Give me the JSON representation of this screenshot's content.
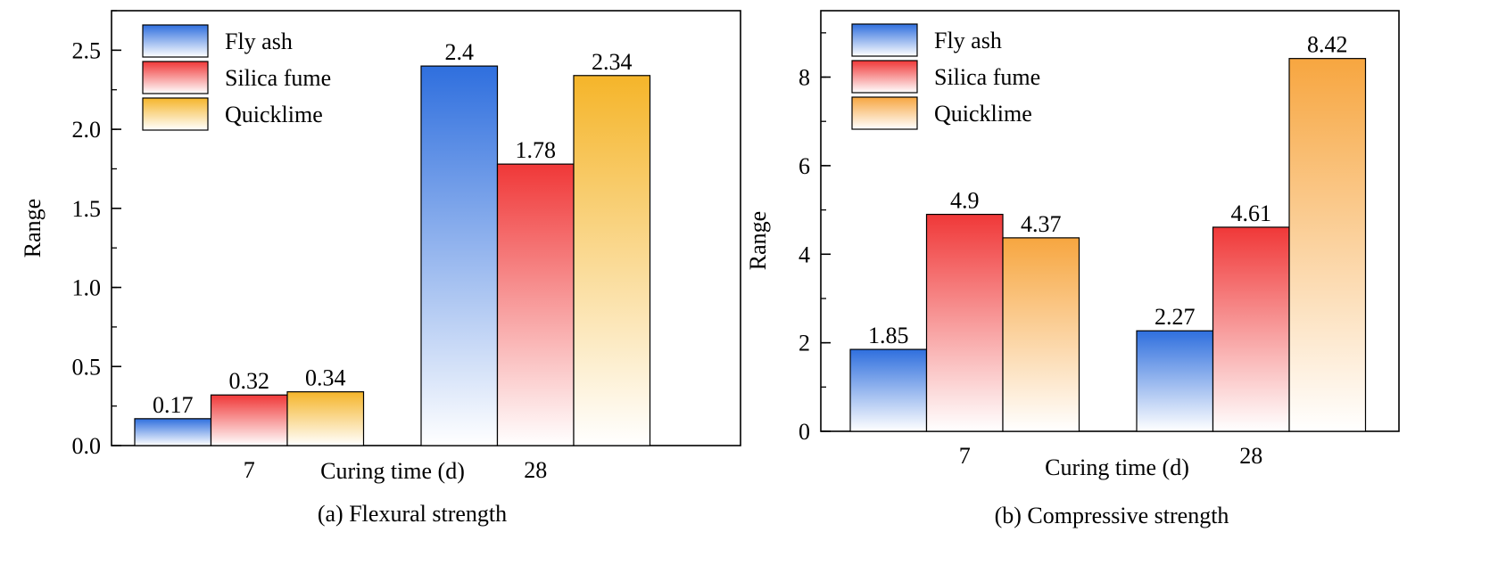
{
  "colors": {
    "fly_ash": "#2f6fde",
    "silica_fume": "#f03838",
    "quicklime": "#f5b52a",
    "quicklime_b": "#f7a640"
  },
  "chart_data": [
    {
      "type": "bar",
      "title": "Flexural strength",
      "caption": "(a)  Flexural strength",
      "xlabel": "Curing time (d)",
      "ylabel": "Range",
      "categories": [
        "7",
        "28"
      ],
      "ylim": [
        0,
        2.75
      ],
      "yticks": [
        "0.0",
        "0.5",
        "1.0",
        "1.5",
        "2.0",
        "2.5"
      ],
      "legend": "top-left",
      "series": [
        {
          "name": "Fly ash",
          "values": [
            0.17,
            2.4
          ],
          "labels": [
            "0.17",
            "2.4"
          ]
        },
        {
          "name": "Silica fume",
          "values": [
            0.32,
            1.78
          ],
          "labels": [
            "0.32",
            "1.78"
          ]
        },
        {
          "name": "Quicklime",
          "values": [
            0.34,
            2.34
          ],
          "labels": [
            "0.34",
            "2.34"
          ]
        }
      ]
    },
    {
      "type": "bar",
      "title": "Compressive strength",
      "caption": "(b)  Compressive strength",
      "xlabel": "Curing time (d)",
      "ylabel": "Range",
      "categories": [
        "7",
        "28"
      ],
      "ylim": [
        0,
        9.5
      ],
      "yticks": [
        "0",
        "2",
        "4",
        "6",
        "8"
      ],
      "legend": "top-left",
      "series": [
        {
          "name": "Fly ash",
          "values": [
            1.85,
            2.27
          ],
          "labels": [
            "1.85",
            "2.27"
          ]
        },
        {
          "name": "Silica fume",
          "values": [
            4.9,
            4.61
          ],
          "labels": [
            "4.9",
            "4.61"
          ]
        },
        {
          "name": "Quicklime",
          "values": [
            4.37,
            8.42
          ],
          "labels": [
            "4.37",
            "8.42"
          ]
        }
      ]
    }
  ]
}
